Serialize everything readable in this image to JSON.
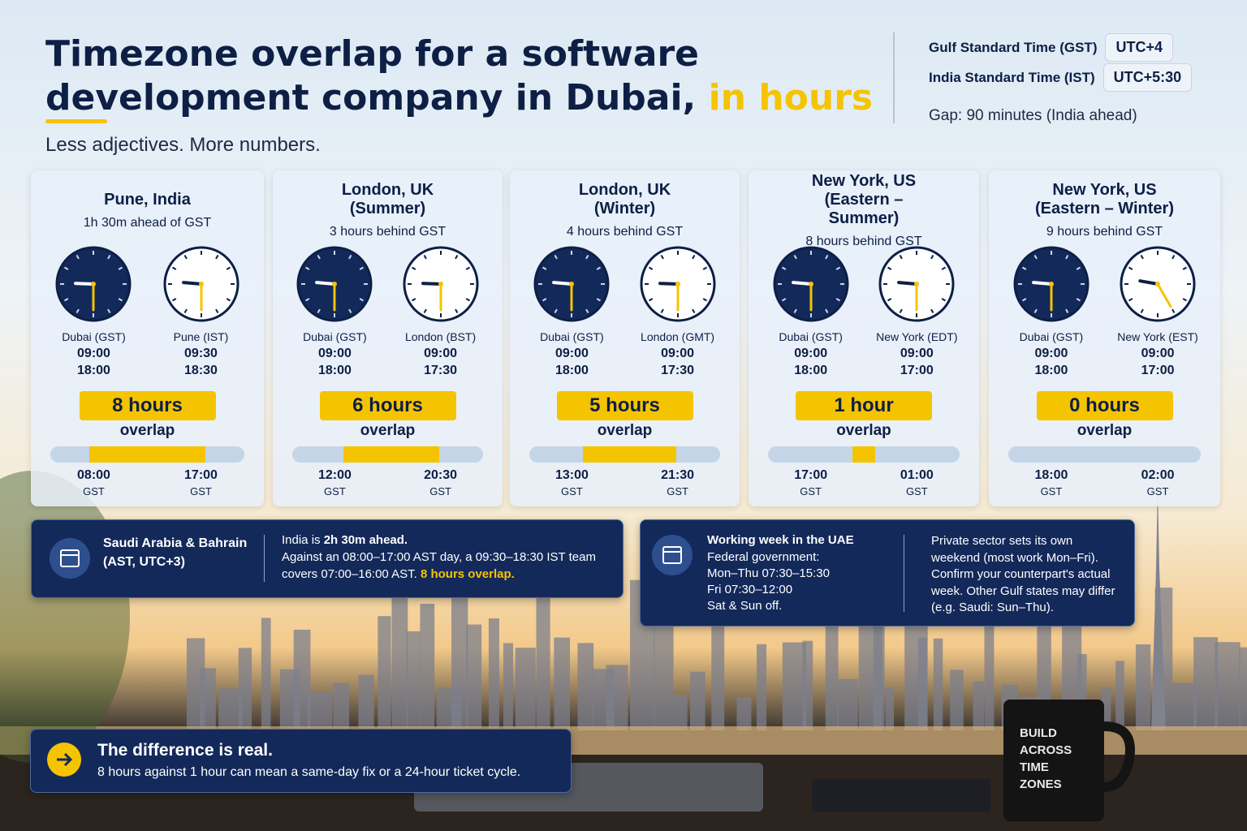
{
  "header": {
    "title_line1": "Timezone overlap for a software",
    "title_line2": "development company in Dubai,",
    "title_highlight": "in hours",
    "subtitle": "Less adjectives. More numbers."
  },
  "zones": {
    "rows": [
      {
        "name": "Gulf Standard Time (GST)",
        "offset": "UTC+4"
      },
      {
        "name": "India Standard Time (IST)",
        "offset": "UTC+5:30"
      }
    ],
    "gap": "Gap: 90 minutes (India ahead)"
  },
  "cards": [
    {
      "city": "Pune, India",
      "sub": "1h 30m ahead of GST",
      "left": {
        "label": "Dubai (GST)",
        "t1": "09:00",
        "t2": "18:00"
      },
      "right": {
        "label": "Pune (IST)",
        "t1": "09:30",
        "t2": "18:30"
      },
      "overlap": "8 hours",
      "overlap_label": "overlap",
      "start": "08:00",
      "start_tz": "GST",
      "end": "17:00",
      "end_tz": "GST"
    },
    {
      "city": "London, UK (Summer)",
      "sub": "3 hours behind GST",
      "left": {
        "label": "Dubai (GST)",
        "t1": "09:00",
        "t2": "18:00"
      },
      "right": {
        "label": "London (BST)",
        "t1": "09:00",
        "t2": "17:30"
      },
      "overlap": "6 hours",
      "overlap_label": "overlap",
      "start": "12:00",
      "start_tz": "GST",
      "end": "20:30",
      "end_tz": "GST"
    },
    {
      "city": "London, UK (Winter)",
      "sub": "4 hours behind GST",
      "left": {
        "label": "Dubai (GST)",
        "t1": "09:00",
        "t2": "18:00"
      },
      "right": {
        "label": "London (GMT)",
        "t1": "09:00",
        "t2": "17:30"
      },
      "overlap": "5 hours",
      "overlap_label": "overlap",
      "start": "13:00",
      "start_tz": "GST",
      "end": "21:30",
      "end_tz": "GST"
    },
    {
      "city": "New York, US (Eastern – Summer)",
      "sub": "8 hours behind GST",
      "left": {
        "label": "Dubai (GST)",
        "t1": "09:00",
        "t2": "18:00"
      },
      "right": {
        "label": "New York (EDT)",
        "t1": "09:00",
        "t2": "17:00"
      },
      "overlap": "1 hour",
      "overlap_label": "overlap",
      "start": "17:00",
      "start_tz": "GST",
      "end": "01:00",
      "end_tz": "GST"
    },
    {
      "city": "New York, US (Eastern – Winter)",
      "sub": "9 hours behind GST",
      "left": {
        "label": "Dubai (GST)",
        "t1": "09:00",
        "t2": "18:00"
      },
      "right": {
        "label": "New York (EST)",
        "t1": "09:00",
        "t2": "17:00"
      },
      "overlap": "0 hours",
      "overlap_label": "overlap",
      "start": "18:00",
      "start_tz": "GST",
      "end": "02:00",
      "end_tz": "GST"
    }
  ],
  "saudi": {
    "title": "Saudi Arabia & Bahrain (AST, UTC+3)",
    "lead": "India is ",
    "lead_bold": "2h 30m ahead.",
    "body": "Against an 08:00–17:00 AST day, a 09:30–18:30 IST team covers 07:00–16:00 AST. ",
    "highlight": "8 hours overlap."
  },
  "uae": {
    "title": "Working week in the UAE",
    "lines": [
      "Federal government:",
      "Mon–Thu 07:30–15:30",
      "Fri 07:30–12:00",
      "Sat & Sun off."
    ],
    "note": "Private sector sets its own weekend (most work Mon–Fri). Confirm your counterpart's actual week. Other Gulf states may differ (e.g. Saudi: Sun–Thu)."
  },
  "footer": {
    "title": "The difference is real.",
    "text": "8 hours against 1 hour can mean a same-day fix or a 24-hour ticket cycle."
  },
  "mug": "BUILD ACROSS TIME ZONES"
}
